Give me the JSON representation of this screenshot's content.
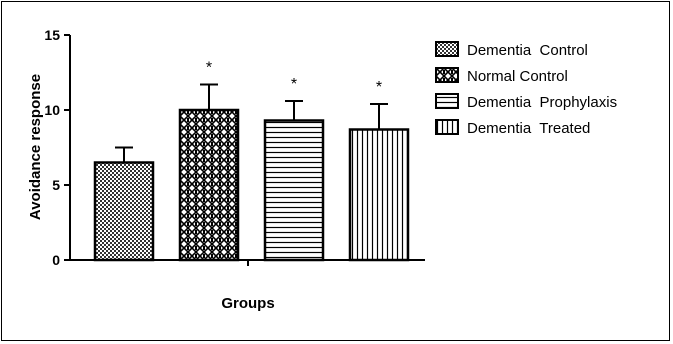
{
  "chart_data": {
    "type": "bar",
    "title": "",
    "xlabel": "Groups",
    "ylabel": "Avoidance response",
    "ylim": [
      0,
      15
    ],
    "yticks": [
      0,
      5,
      10,
      15
    ],
    "legend_position": "right",
    "categories": [
      "Dementia  Control",
      "Normal Control",
      "Dementia  Prophylaxis",
      "Dementia  Treated"
    ],
    "values": [
      6.5,
      10.0,
      9.3,
      8.7
    ],
    "errors": [
      1.0,
      1.7,
      1.3,
      1.7
    ],
    "significance": [
      "",
      "*",
      "*",
      "*"
    ],
    "patterns": [
      "checkerboard",
      "diamond-check",
      "horizontal-lines",
      "vertical-lines"
    ],
    "colors": {
      "bar_fill_base": "#ffffff",
      "stroke": "#000000",
      "pattern_ink": "#000000"
    },
    "grid": false
  }
}
